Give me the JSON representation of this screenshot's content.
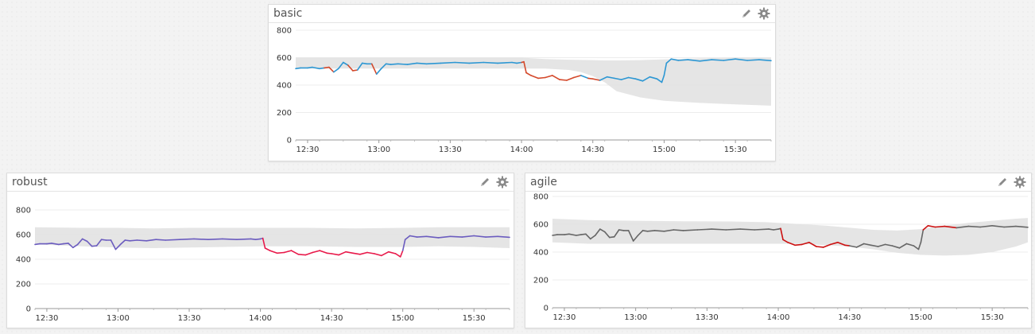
{
  "colors": {
    "band": "#e2e2e2",
    "basic_normal": "#2d97d3",
    "basic_anomaly": "#d4492b",
    "robust_normal": "#6b5cbf",
    "robust_anomaly": "#e8194a",
    "agile_normal": "#666666",
    "agile_anomaly": "#cc1111"
  },
  "icons": {
    "edit": "pencil-icon",
    "settings": "gear-icon"
  },
  "chart_data": [
    {
      "type": "line",
      "title": "basic",
      "ylim": [
        0,
        800
      ],
      "yticks": [
        "0",
        "200",
        "400",
        "600",
        "800"
      ],
      "xlim": [
        745,
        945
      ],
      "xticks": [
        {
          "v": 750,
          "label": "12:30"
        },
        {
          "v": 780,
          "label": "13:00"
        },
        {
          "v": 810,
          "label": "13:30"
        },
        {
          "v": 840,
          "label": "14:00"
        },
        {
          "v": 870,
          "label": "14:30"
        },
        {
          "v": 900,
          "label": "15:00"
        },
        {
          "v": 930,
          "label": "15:30"
        }
      ],
      "band": {
        "x": [
          745,
          780,
          810,
          835,
          840,
          850,
          860,
          865,
          870,
          875,
          880,
          890,
          900,
          915,
          930,
          945
        ],
        "upper": [
          600,
          600,
          600,
          600,
          600,
          590,
          585,
          583,
          582,
          580,
          580,
          582,
          588,
          595,
          600,
          600
        ],
        "lower": [
          520,
          520,
          520,
          520,
          520,
          520,
          510,
          495,
          465,
          420,
          355,
          310,
          285,
          270,
          260,
          250
        ]
      },
      "series": [
        {
          "name": "basic",
          "x": [
            745,
            747,
            750,
            752,
            755,
            757,
            759,
            761,
            763,
            765,
            767,
            769,
            771,
            773,
            775,
            777,
            779,
            781,
            783,
            785,
            788,
            792,
            796,
            800,
            806,
            812,
            818,
            824,
            830,
            836,
            838,
            840,
            841,
            842,
            844,
            847,
            850,
            853,
            856,
            859,
            862,
            865,
            868,
            870,
            873,
            876,
            879,
            882,
            885,
            888,
            891,
            894,
            897,
            899,
            900,
            901,
            903,
            906,
            910,
            915,
            920,
            925,
            930,
            935,
            940,
            945
          ],
          "y": [
            520,
            525,
            525,
            530,
            520,
            525,
            530,
            495,
            520,
            565,
            545,
            505,
            510,
            560,
            555,
            555,
            480,
            520,
            555,
            550,
            555,
            550,
            560,
            555,
            560,
            565,
            560,
            565,
            560,
            565,
            560,
            565,
            570,
            490,
            470,
            450,
            455,
            470,
            440,
            435,
            455,
            470,
            450,
            445,
            435,
            460,
            450,
            440,
            455,
            445,
            430,
            460,
            445,
            420,
            470,
            560,
            590,
            580,
            585,
            575,
            585,
            580,
            590,
            580,
            585,
            578
          ]
        }
      ],
      "anomalies": [
        [
          758,
          761
        ],
        [
          768,
          771
        ],
        [
          777,
          779
        ],
        [
          840,
          865
        ],
        [
          868,
          872
        ]
      ]
    },
    {
      "type": "line",
      "title": "robust",
      "ylim": [
        0,
        800
      ],
      "yticks": [
        "0",
        "200",
        "400",
        "600",
        "800"
      ],
      "xlim": [
        745,
        945
      ],
      "xticks": [
        {
          "v": 750,
          "label": "12:30"
        },
        {
          "v": 780,
          "label": "13:00"
        },
        {
          "v": 810,
          "label": "13:30"
        },
        {
          "v": 840,
          "label": "14:00"
        },
        {
          "v": 870,
          "label": "14:30"
        },
        {
          "v": 900,
          "label": "15:00"
        },
        {
          "v": 930,
          "label": "15:30"
        }
      ],
      "band": {
        "x": [
          745,
          765,
          780,
          795,
          810,
          825,
          840,
          860,
          880,
          900,
          915,
          930,
          945
        ],
        "upper": [
          660,
          655,
          655,
          650,
          655,
          655,
          655,
          655,
          650,
          655,
          660,
          660,
          660
        ],
        "lower": [
          520,
          505,
          495,
          490,
          495,
          500,
          505,
          505,
          500,
          500,
          505,
          500,
          490
        ]
      },
      "series": [
        {
          "name": "robust",
          "x": [
            745,
            747,
            750,
            752,
            755,
            757,
            759,
            761,
            763,
            765,
            767,
            769,
            771,
            773,
            775,
            777,
            779,
            781,
            783,
            785,
            788,
            792,
            796,
            800,
            806,
            812,
            818,
            824,
            830,
            836,
            838,
            840,
            841,
            842,
            844,
            847,
            850,
            853,
            856,
            859,
            862,
            865,
            868,
            870,
            873,
            876,
            879,
            882,
            885,
            888,
            891,
            894,
            897,
            899,
            900,
            901,
            903,
            906,
            910,
            915,
            920,
            925,
            930,
            935,
            940,
            945
          ],
          "y": [
            520,
            525,
            525,
            530,
            520,
            525,
            530,
            495,
            520,
            565,
            545,
            505,
            510,
            560,
            555,
            555,
            480,
            520,
            555,
            550,
            555,
            550,
            560,
            555,
            560,
            565,
            560,
            565,
            560,
            565,
            560,
            565,
            570,
            490,
            470,
            450,
            455,
            470,
            440,
            435,
            455,
            470,
            450,
            445,
            435,
            460,
            450,
            440,
            455,
            445,
            430,
            460,
            445,
            420,
            470,
            560,
            590,
            580,
            585,
            575,
            585,
            580,
            590,
            580,
            585,
            578
          ]
        }
      ],
      "anomalies": [
        [
          841,
          900
        ]
      ]
    },
    {
      "type": "line",
      "title": "agile",
      "ylim": [
        0,
        800
      ],
      "yticks": [
        "0",
        "200",
        "400",
        "600",
        "800"
      ],
      "xlim": [
        745,
        945
      ],
      "xticks": [
        {
          "v": 750,
          "label": "12:30"
        },
        {
          "v": 780,
          "label": "13:00"
        },
        {
          "v": 810,
          "label": "13:30"
        },
        {
          "v": 840,
          "label": "14:00"
        },
        {
          "v": 870,
          "label": "14:30"
        },
        {
          "v": 900,
          "label": "15:00"
        },
        {
          "v": 930,
          "label": "15:30"
        }
      ],
      "band": {
        "x": [
          745,
          760,
          780,
          800,
          820,
          835,
          840,
          850,
          860,
          870,
          880,
          890,
          900,
          910,
          920,
          930,
          940,
          945
        ],
        "upper": [
          640,
          630,
          625,
          622,
          620,
          615,
          610,
          600,
          590,
          575,
          560,
          555,
          565,
          590,
          610,
          625,
          640,
          645
        ],
        "lower": [
          470,
          460,
          460,
          460,
          460,
          460,
          460,
          458,
          450,
          440,
          420,
          395,
          380,
          375,
          380,
          400,
          440,
          470
        ]
      },
      "series": [
        {
          "name": "agile",
          "x": [
            745,
            747,
            750,
            752,
            755,
            757,
            759,
            761,
            763,
            765,
            767,
            769,
            771,
            773,
            775,
            777,
            779,
            781,
            783,
            785,
            788,
            792,
            796,
            800,
            806,
            812,
            818,
            824,
            830,
            836,
            838,
            840,
            841,
            842,
            844,
            847,
            850,
            853,
            856,
            859,
            862,
            865,
            868,
            870,
            873,
            876,
            879,
            882,
            885,
            888,
            891,
            894,
            897,
            899,
            900,
            901,
            903,
            906,
            910,
            915,
            920,
            925,
            930,
            935,
            940,
            945
          ],
          "y": [
            520,
            525,
            525,
            530,
            520,
            525,
            530,
            495,
            520,
            565,
            545,
            505,
            510,
            560,
            555,
            555,
            480,
            520,
            555,
            550,
            555,
            550,
            560,
            555,
            560,
            565,
            560,
            565,
            560,
            565,
            560,
            565,
            570,
            490,
            470,
            450,
            455,
            470,
            440,
            435,
            455,
            470,
            450,
            445,
            435,
            460,
            450,
            440,
            455,
            445,
            430,
            460,
            445,
            420,
            470,
            560,
            590,
            580,
            585,
            575,
            585,
            580,
            590,
            580,
            585,
            578
          ]
        }
      ],
      "anomalies": [
        [
          841,
          869
        ],
        [
          901,
          917
        ]
      ]
    }
  ]
}
